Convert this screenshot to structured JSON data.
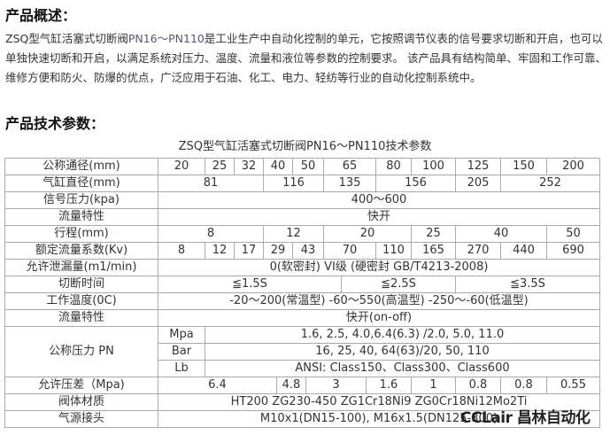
{
  "overview": {
    "heading": "产品概述：",
    "text_prefix": "ZSQ型气缸活塞式切断阀",
    "text_pn": "PN16～PN110",
    "text_rest": "是工业生产中自动化控制的单元，它按照调节仪表的信号要求切断和开启，也可以单独快速切断和开启，以满足系统对压力、温度、流量和液位等参数的控制要求。 该产品具有结构简单、牢固和工作可靠、维修方便和防火、防爆的优点，广泛应用于石油、化工、电力、轻纺等行业的自动化控制系统中。"
  },
  "params": {
    "heading": "产品技术参数：",
    "table_title": "ZSQ型气缸活塞式切断阀PN16～PN110技术参数"
  },
  "table": {
    "dn": {
      "label": "公称通径(mm)",
      "values": [
        "20",
        "25",
        "32",
        "40",
        "50",
        "65",
        "80",
        "100",
        "125",
        "150",
        "200"
      ]
    },
    "cyl": {
      "label": "气缸直径(mm)",
      "values": [
        "81",
        "116",
        "135",
        "156",
        "205",
        "252"
      ]
    },
    "signal": {
      "label": "信号压力(kpa)",
      "value": "400～600"
    },
    "flow1": {
      "label": "流量特性",
      "value": "快开"
    },
    "stroke": {
      "label": "行程(mm)",
      "values": [
        "8",
        "12",
        "20",
        "25",
        "40",
        "50"
      ]
    },
    "kv": {
      "label": "额定流量系数(Kv)",
      "values": [
        "8",
        "12",
        "17",
        "29",
        "43",
        "70",
        "110",
        "165",
        "270",
        "440",
        "690"
      ]
    },
    "leak": {
      "label": "允许泄漏量(m1/min)",
      "value": "0(软密封)  VI级 (硬密封 GB/T4213-2008)"
    },
    "time": {
      "label": "切断时间",
      "values": [
        "≦1.5S",
        "≦2.5S",
        "≦3.5S"
      ]
    },
    "temp": {
      "label": "工作温度(0C)",
      "value": "-20～200(常温型)  -60～550(高温型)  -250～-60(低温型)"
    },
    "flow2": {
      "label": "流量特性",
      "value": "快开(on-off)"
    },
    "pn": {
      "label": "公称压力 PN",
      "rows": [
        {
          "unit": "Mpa",
          "value": "1.6, 2.5, 4.0,6.4(6.3) /2.0, 5.0, 11.0"
        },
        {
          "unit": "Bar",
          "value": "16, 25, 40, 64(63)/20, 50, 110"
        },
        {
          "unit": "Lb",
          "value": "ANSI: Class150、Class300、Class600"
        }
      ]
    },
    "dp": {
      "label": "允许压差（Mpa)",
      "values": [
        "6.4",
        "4.8",
        "3",
        "1.6",
        "1",
        "0.8",
        "0.8",
        "0.55"
      ]
    },
    "body": {
      "label": "阀体材质",
      "value": "HT200   ZG230-450   ZG1Cr18Ni9   ZG0Cr18Ni12Mo2Ti"
    },
    "air": {
      "label": "气源接头",
      "value": "M10x1(DN15-100),  M16x1.5(DN125-300)"
    }
  },
  "watermark": "CCLair 昌林自动化"
}
